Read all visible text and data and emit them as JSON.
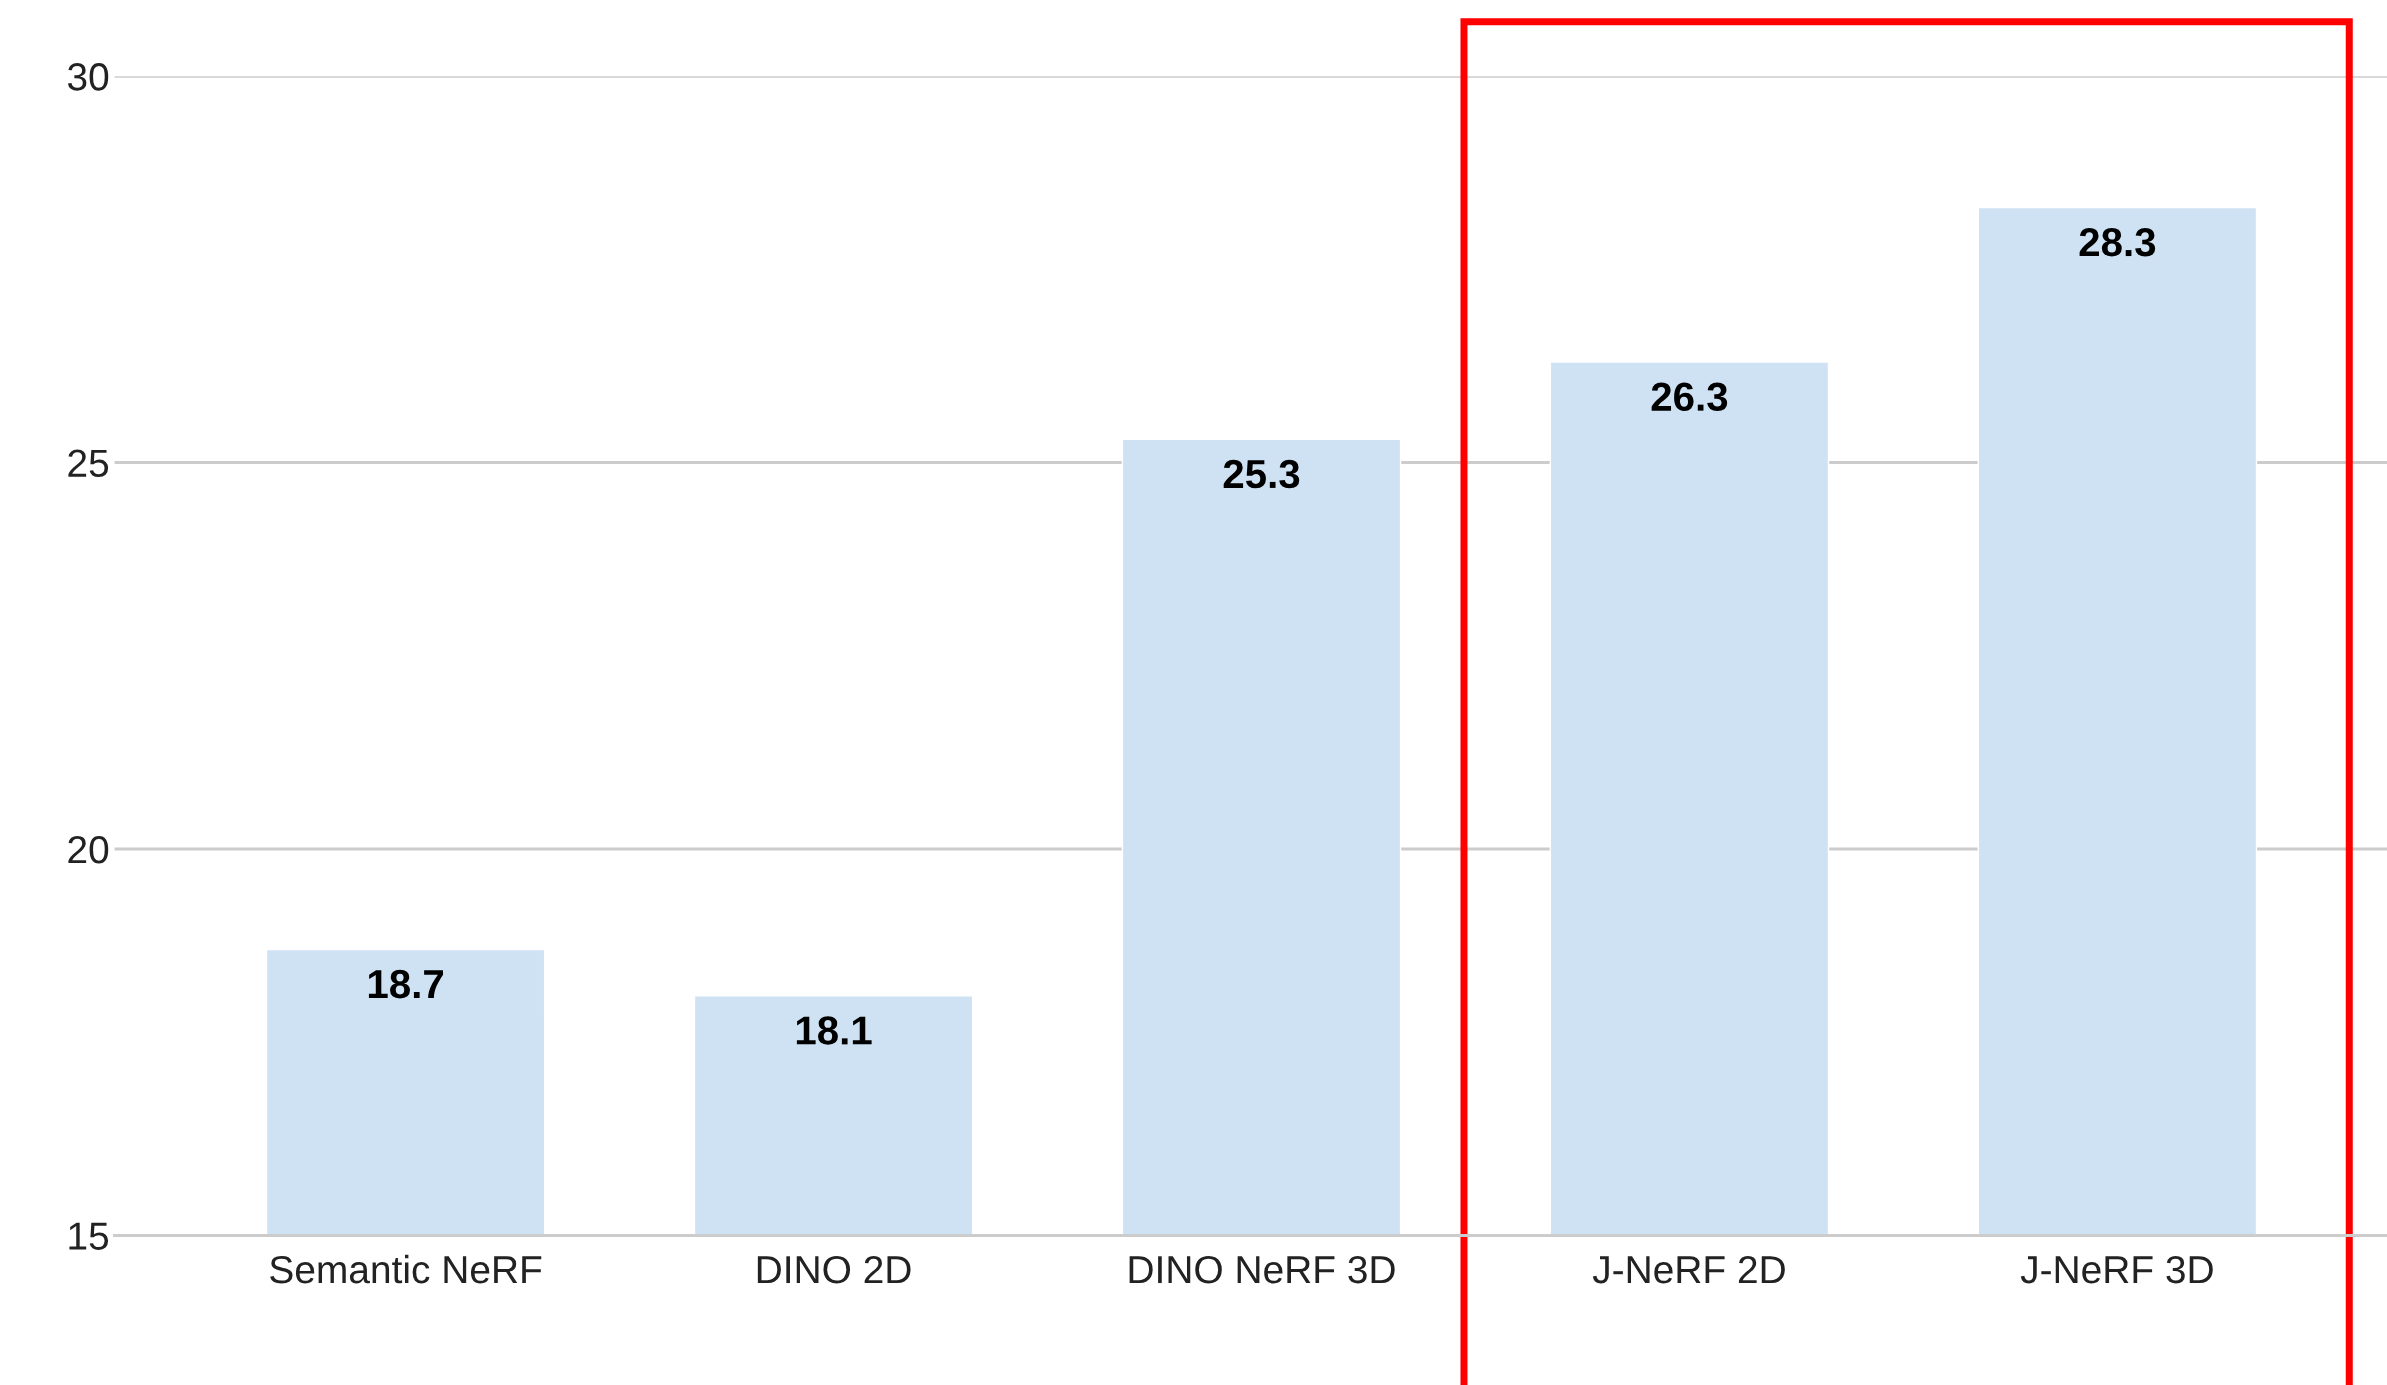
{
  "chart_data": {
    "type": "bar",
    "categories": [
      "Semantic NeRF",
      "DINO 2D",
      "DINO NeRF 3D",
      "J-NeRF 2D",
      "J-NeRF 3D"
    ],
    "values": [
      18.7,
      18.1,
      25.3,
      26.3,
      28.3
    ],
    "color": "#cfe2f3",
    "ylim": [
      15,
      30
    ],
    "yticks": [
      15,
      20,
      25,
      30
    ],
    "grid": "y",
    "data_labels": true
  }
}
